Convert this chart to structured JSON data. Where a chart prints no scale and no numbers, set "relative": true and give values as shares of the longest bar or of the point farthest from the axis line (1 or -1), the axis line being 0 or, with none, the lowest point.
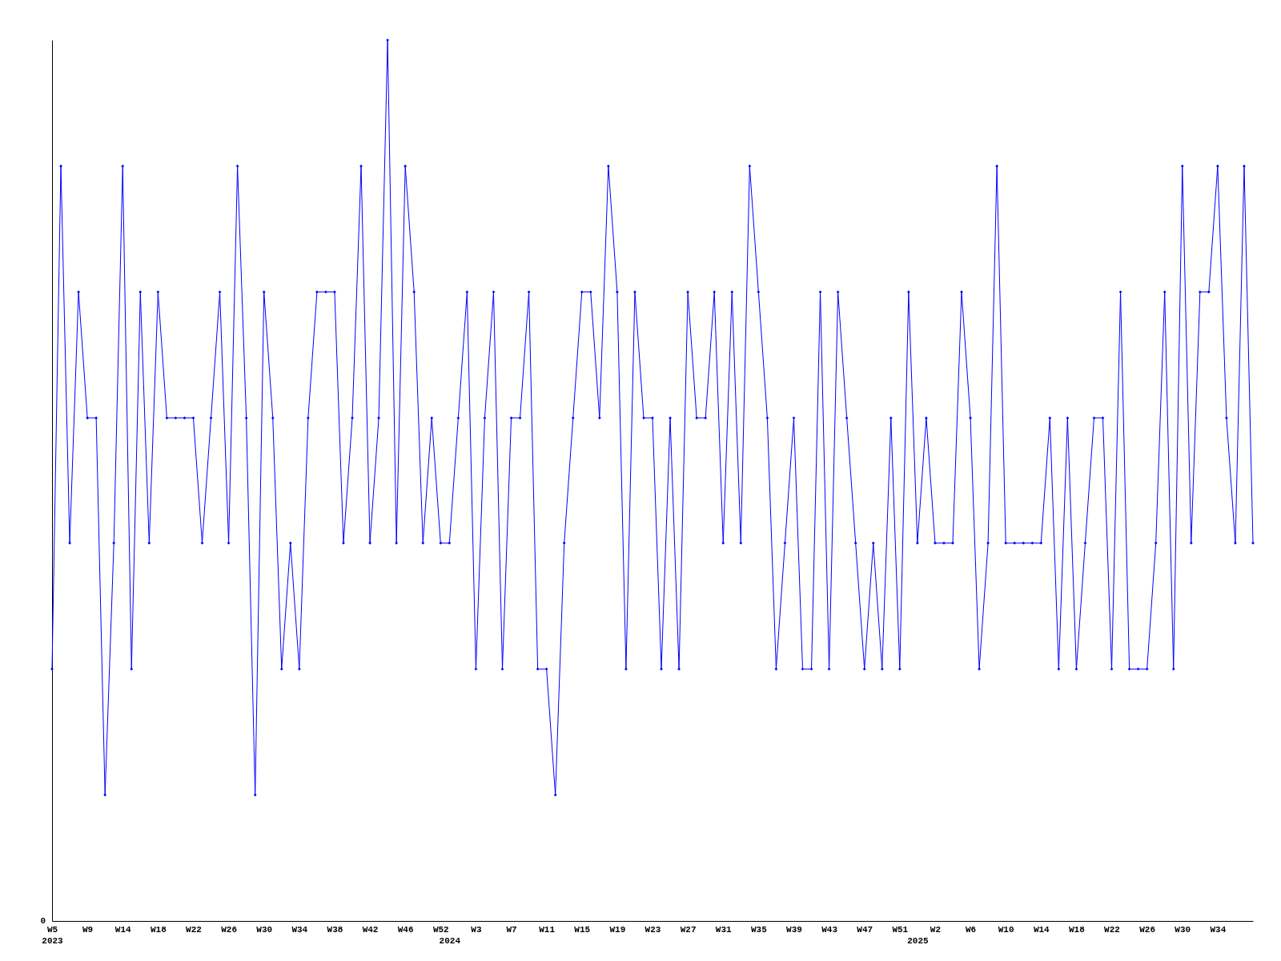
{
  "chart_data": {
    "type": "line",
    "relative": true,
    "color": "#0000ff",
    "marker": "diamond",
    "grid": false,
    "annotations": [
      "0"
    ],
    "categories": [
      "W5\n2023",
      null,
      null,
      null,
      "W9",
      null,
      null,
      null,
      "W14",
      null,
      null,
      null,
      "W18",
      null,
      null,
      null,
      "W22",
      null,
      null,
      null,
      "W26",
      null,
      null,
      null,
      "W30",
      null,
      null,
      null,
      "W34",
      null,
      null,
      null,
      "W38",
      null,
      null,
      null,
      "W42",
      null,
      null,
      null,
      "W46",
      null,
      null,
      null,
      "W52",
      "\n2024",
      null,
      null,
      "W3",
      null,
      null,
      null,
      "W7",
      null,
      null,
      null,
      "W11",
      null,
      null,
      null,
      "W15",
      null,
      null,
      null,
      "W19",
      null,
      null,
      null,
      "W23",
      null,
      null,
      null,
      "W27",
      null,
      null,
      null,
      "W31",
      null,
      null,
      null,
      "W35",
      null,
      null,
      null,
      "W39",
      null,
      null,
      null,
      "W43",
      null,
      null,
      null,
      "W47",
      null,
      null,
      null,
      "W51",
      null,
      "\n2025",
      null,
      "W2",
      null,
      null,
      null,
      "W6",
      null,
      null,
      null,
      "W10",
      null,
      null,
      null,
      "W14",
      null,
      null,
      null,
      "W18",
      null,
      null,
      null,
      "W22",
      null,
      null,
      null,
      "W26",
      null,
      null,
      null,
      "W30",
      null,
      null,
      null,
      "W34",
      null,
      null,
      null,
      null
    ],
    "values": [
      0.286,
      0.857,
      0.429,
      0.714,
      0.571,
      0.571,
      0.143,
      0.429,
      0.857,
      0.286,
      0.714,
      0.429,
      0.714,
      0.571,
      0.571,
      0.571,
      0.571,
      0.429,
      0.571,
      0.714,
      0.429,
      0.857,
      0.571,
      0.143,
      0.714,
      0.571,
      0.286,
      0.429,
      0.286,
      0.571,
      0.714,
      0.714,
      0.714,
      0.429,
      0.571,
      0.857,
      0.429,
      0.571,
      1,
      0.429,
      0.857,
      0.714,
      0.429,
      0.571,
      0.429,
      0.429,
      0.571,
      0.714,
      0.286,
      0.571,
      0.714,
      0.286,
      0.571,
      0.571,
      0.714,
      0.286,
      0.286,
      0.143,
      0.429,
      0.571,
      0.714,
      0.714,
      0.571,
      0.857,
      0.714,
      0.286,
      0.714,
      0.571,
      0.571,
      0.286,
      0.571,
      0.286,
      0.714,
      0.571,
      0.571,
      0.714,
      0.429,
      0.714,
      0.429,
      0.857,
      0.714,
      0.571,
      0.286,
      0.429,
      0.571,
      0.286,
      0.286,
      0.714,
      0.286,
      0.714,
      0.571,
      0.429,
      0.286,
      0.429,
      0.286,
      0.571,
      0.286,
      0.714,
      0.429,
      0.571,
      0.429,
      0.429,
      0.429,
      0.714,
      0.571,
      0.286,
      0.429,
      0.857,
      0.429,
      0.429,
      0.429,
      0.429,
      0.429,
      0.571,
      0.286,
      0.571,
      0.286,
      0.429,
      0.571,
      0.571,
      0.286,
      0.714,
      0.286,
      0.286,
      0.286,
      0.429,
      0.714,
      0.286,
      0.857,
      0.429,
      0.714,
      0.714,
      0.857,
      0.571,
      0.429,
      0.857,
      0.429
    ]
  }
}
